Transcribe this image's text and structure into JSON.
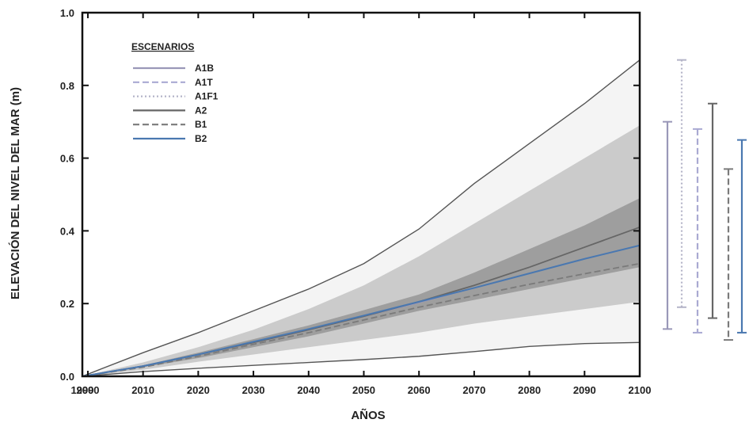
{
  "chart_data": {
    "type": "line",
    "xlabel": "AÑOS",
    "ylabel": "ELEVACIÓN DEL NIVEL DEL MAR  (m)",
    "xlim": [
      1999,
      2100
    ],
    "ylim": [
      0,
      1.0
    ],
    "x_ticks": [
      "1999",
      "2000",
      "2010",
      "2020",
      "2030",
      "2040",
      "2050",
      "2060",
      "2070",
      "2080",
      "2090",
      "2100"
    ],
    "y_ticks": [
      "0.0",
      "0.2",
      "0.4",
      "0.6",
      "0.8",
      "1.0"
    ],
    "legend_title": "ESCENARIOS",
    "legend_position": "top-left",
    "grid": false,
    "series": [
      {
        "name": "A1B",
        "color": "#9a98b8",
        "dash": "solid"
      },
      {
        "name": "A1T",
        "color": "#a9a9d2",
        "dash": "dashed"
      },
      {
        "name": "A1F1",
        "color": "#b4b4c8",
        "dash": "dotted"
      },
      {
        "name": "A2",
        "color": "#666666",
        "dash": "solid"
      },
      {
        "name": "B1",
        "color": "#7a7a7a",
        "dash": "dashed"
      },
      {
        "name": "B2",
        "color": "#4a78b0",
        "dash": "solid"
      }
    ],
    "x": [
      1999,
      2010,
      2020,
      2030,
      2040,
      2050,
      2060,
      2070,
      2080,
      2090,
      2100
    ],
    "central_lines": [
      {
        "series": "A1B",
        "y": [
          0,
          0.028,
          0.06,
          0.093,
          0.128,
          0.165,
          0.203,
          0.243,
          0.283,
          0.323,
          0.36
        ]
      },
      {
        "series": "A2",
        "y": [
          0,
          0.028,
          0.06,
          0.093,
          0.128,
          0.165,
          0.205,
          0.25,
          0.3,
          0.355,
          0.41
        ]
      },
      {
        "series": "B1",
        "y": [
          0,
          0.025,
          0.055,
          0.088,
          0.12,
          0.155,
          0.19,
          0.222,
          0.253,
          0.282,
          0.31
        ]
      },
      {
        "series": "B2",
        "y": [
          0,
          0.028,
          0.06,
          0.095,
          0.13,
          0.167,
          0.205,
          0.243,
          0.283,
          0.323,
          0.36
        ]
      }
    ],
    "envelope": {
      "upper": [
        0,
        0.065,
        0.12,
        0.18,
        0.24,
        0.31,
        0.405,
        0.53,
        0.64,
        0.75,
        0.87
      ],
      "lower": [
        0,
        0.013,
        0.022,
        0.03,
        0.038,
        0.046,
        0.055,
        0.068,
        0.082,
        0.09,
        0.093
      ]
    },
    "bands": [
      {
        "name": "outer-band",
        "upper": [
          0,
          0.038,
          0.08,
          0.128,
          0.185,
          0.25,
          0.33,
          0.42,
          0.51,
          0.6,
          0.69
        ],
        "lower": [
          0,
          0.018,
          0.04,
          0.06,
          0.08,
          0.1,
          0.12,
          0.145,
          0.165,
          0.185,
          0.205
        ]
      },
      {
        "name": "inner-band",
        "upper": [
          0,
          0.03,
          0.065,
          0.102,
          0.14,
          0.182,
          0.225,
          0.285,
          0.35,
          0.415,
          0.49
        ],
        "lower": [
          0,
          0.025,
          0.05,
          0.08,
          0.11,
          0.145,
          0.18,
          0.21,
          0.24,
          0.27,
          0.3
        ]
      }
    ],
    "range_bars": [
      {
        "series": "A1B",
        "low": 0.13,
        "high": 0.7
      },
      {
        "series": "A1F1",
        "low": 0.19,
        "high": 0.87
      },
      {
        "series": "A1T",
        "low": 0.12,
        "high": 0.68
      },
      {
        "series": "A2",
        "low": 0.16,
        "high": 0.75
      },
      {
        "series": "B1",
        "low": 0.1,
        "high": 0.57
      },
      {
        "series": "B2",
        "low": 0.12,
        "high": 0.65
      }
    ]
  }
}
